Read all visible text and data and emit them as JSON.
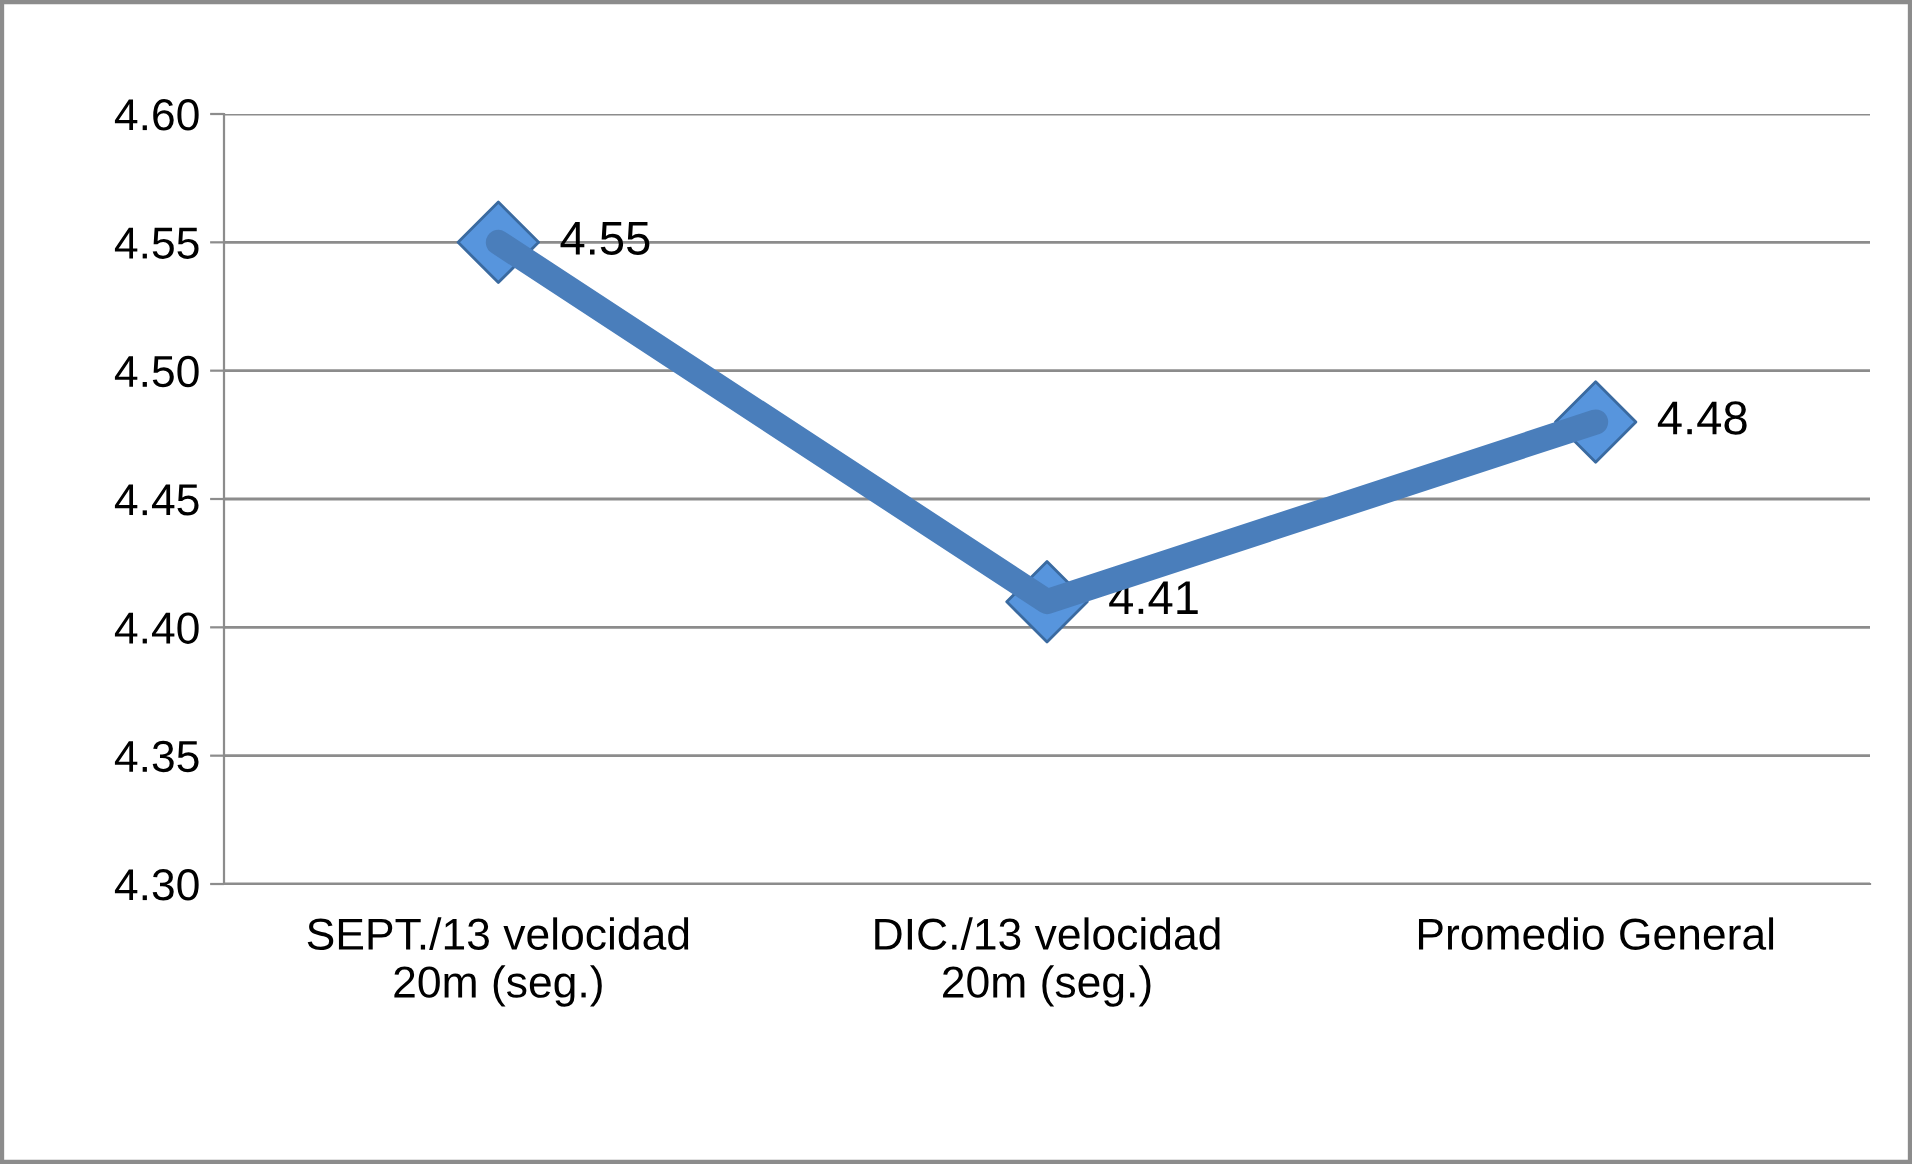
{
  "chart_data": {
    "type": "line",
    "categories": [
      "SEPT./13 velocidad 20m (seg.)",
      "DIC./13 velocidad 20m (seg.)",
      "Promedio General"
    ],
    "series": [
      {
        "color": "#4a7ebb",
        "values": [
          4.55,
          4.41,
          4.48
        ]
      }
    ],
    "ylim": [
      4.3,
      4.6
    ],
    "yticks": [
      {
        "value": 4.3,
        "label": "4.30"
      },
      {
        "value": 4.35,
        "label": "4.35"
      },
      {
        "value": 4.4,
        "label": "4.40"
      },
      {
        "value": 4.45,
        "label": "4.45"
      },
      {
        "value": 4.5,
        "label": "4.50"
      },
      {
        "value": 4.55,
        "label": "4.55"
      },
      {
        "value": 4.6,
        "label": "4.60"
      }
    ],
    "grid": "y",
    "marker": "diamond",
    "line_style": "solid",
    "data_labels": true
  }
}
